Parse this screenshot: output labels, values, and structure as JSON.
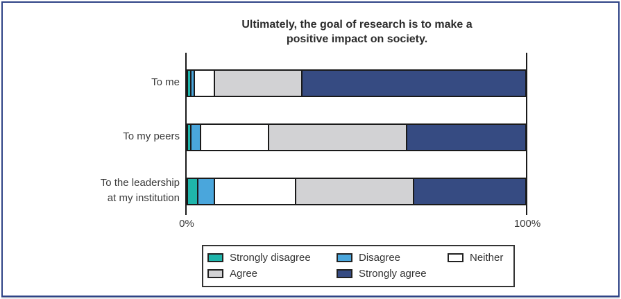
{
  "figure": {
    "background": "#FFFFFF",
    "border_color": "#2E4386",
    "axis_color": "#1A1A1A"
  },
  "chart_data": {
    "type": "bar",
    "variant": "horizontal-stacked-100pct",
    "title": "Ultimately, the goal of research is to make a positive impact on society.",
    "title_lines": [
      "Ultimately, the goal of research is to make a",
      "positive impact on society."
    ],
    "categories": [
      "To me",
      "To my peers",
      "To the leadership\nat my institution"
    ],
    "series": [
      {
        "name": "Strongly disagree",
        "color": "#1FB5AB",
        "values": [
          1,
          1,
          3
        ]
      },
      {
        "name": "Disagree",
        "color": "#4AA6DC",
        "values": [
          1,
          3,
          5
        ]
      },
      {
        "name": "Neither",
        "color": "#FFFFFF",
        "values": [
          6,
          20,
          24
        ]
      },
      {
        "name": "Agree",
        "color": "#D2D2D4",
        "values": [
          26,
          41,
          35
        ]
      },
      {
        "name": "Strongly agree",
        "color": "#364B82",
        "values": [
          66,
          35,
          33
        ]
      }
    ],
    "x_axis": {
      "range": [
        0,
        100
      ],
      "ticks": [
        "0%",
        "100%"
      ],
      "units": "percent"
    },
    "grid": false,
    "legend_position": "bottom"
  }
}
